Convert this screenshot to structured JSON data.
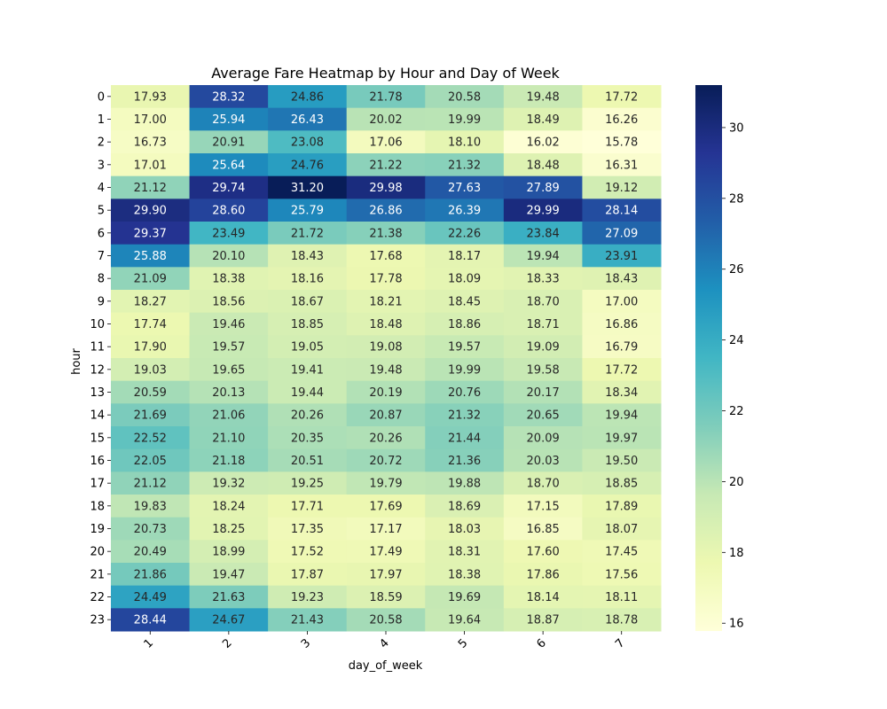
{
  "chart_data": {
    "type": "heatmap",
    "title": "Average Fare Heatmap by Hour and Day of Week",
    "xlabel": "day_of_week",
    "ylabel": "hour",
    "x": [
      "1",
      "2",
      "3",
      "4",
      "5",
      "6",
      "7"
    ],
    "y": [
      "0",
      "1",
      "2",
      "3",
      "4",
      "5",
      "6",
      "7",
      "8",
      "9",
      "10",
      "11",
      "12",
      "13",
      "14",
      "15",
      "16",
      "17",
      "18",
      "19",
      "20",
      "21",
      "22",
      "23"
    ],
    "values": [
      [
        17.93,
        28.32,
        24.86,
        21.78,
        20.58,
        19.48,
        17.72
      ],
      [
        17.0,
        25.94,
        26.43,
        20.02,
        19.99,
        18.49,
        16.26
      ],
      [
        16.73,
        20.91,
        23.08,
        17.06,
        18.1,
        16.02,
        15.78
      ],
      [
        17.01,
        25.64,
        24.76,
        21.22,
        21.32,
        18.48,
        16.31
      ],
      [
        21.12,
        29.74,
        31.2,
        29.98,
        27.63,
        27.89,
        19.12
      ],
      [
        29.9,
        28.6,
        25.79,
        26.86,
        26.39,
        29.99,
        28.14
      ],
      [
        29.37,
        23.49,
        21.72,
        21.38,
        22.26,
        23.84,
        27.09
      ],
      [
        25.88,
        20.1,
        18.43,
        17.68,
        18.17,
        19.94,
        23.91
      ],
      [
        21.09,
        18.38,
        18.16,
        17.78,
        18.09,
        18.33,
        18.43
      ],
      [
        18.27,
        18.56,
        18.67,
        18.21,
        18.45,
        18.7,
        17.0
      ],
      [
        17.74,
        19.46,
        18.85,
        18.48,
        18.86,
        18.71,
        16.86
      ],
      [
        17.9,
        19.57,
        19.05,
        19.08,
        19.57,
        19.09,
        16.79
      ],
      [
        19.03,
        19.65,
        19.41,
        19.48,
        19.99,
        19.58,
        17.72
      ],
      [
        20.59,
        20.13,
        19.44,
        20.19,
        20.76,
        20.17,
        18.34
      ],
      [
        21.69,
        21.06,
        20.26,
        20.87,
        21.32,
        20.65,
        19.94
      ],
      [
        22.52,
        21.1,
        20.35,
        20.26,
        21.44,
        20.09,
        19.97
      ],
      [
        22.05,
        21.18,
        20.51,
        20.72,
        21.36,
        20.03,
        19.5
      ],
      [
        21.12,
        19.32,
        19.25,
        19.79,
        19.88,
        18.7,
        18.85
      ],
      [
        19.83,
        18.24,
        17.71,
        17.69,
        18.69,
        17.15,
        17.89
      ],
      [
        20.73,
        18.25,
        17.35,
        17.17,
        18.03,
        16.85,
        18.07
      ],
      [
        20.49,
        18.99,
        17.52,
        17.49,
        18.31,
        17.6,
        17.45
      ],
      [
        21.86,
        19.47,
        17.87,
        17.97,
        18.38,
        17.86,
        17.56
      ],
      [
        24.49,
        21.63,
        19.23,
        18.59,
        19.69,
        18.14,
        18.11
      ],
      [
        28.44,
        24.67,
        21.43,
        20.58,
        19.64,
        18.87,
        18.78
      ]
    ],
    "value_format": "2 decimals",
    "vmin": 15.78,
    "vmax": 31.2,
    "colormap": "YlGnBu",
    "colorbar": {
      "ticks": [
        16,
        18,
        20,
        22,
        24,
        26,
        28,
        30
      ],
      "tick_labels": [
        "16",
        "18",
        "20",
        "22",
        "24",
        "26",
        "28",
        "30"
      ]
    },
    "x_tick_rotation_deg": 45,
    "grid": false,
    "legend": "colorbar-right"
  }
}
